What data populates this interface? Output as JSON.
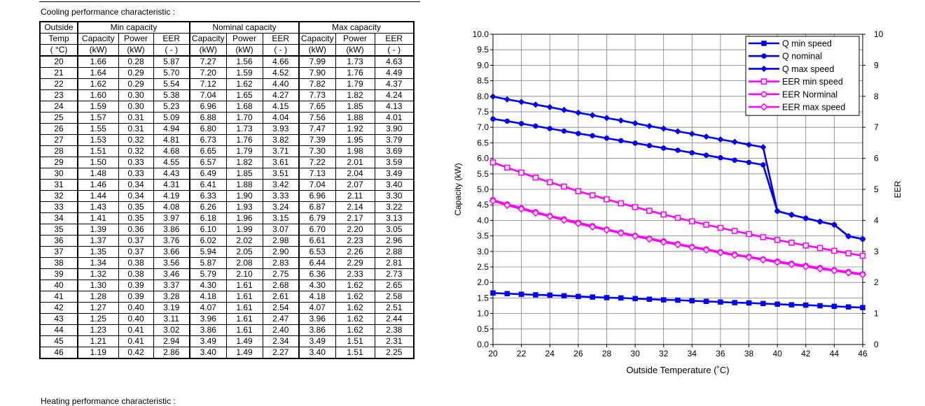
{
  "caption": "Cooling performance  characteristic :",
  "footer_caption": "Heating performance  characteristic :",
  "table": {
    "header_row1": [
      "Outside",
      "Min capacity",
      "Nominal capacity",
      "Max capacity"
    ],
    "header_row2": [
      "Temp",
      "Capacity",
      "Power",
      "EER",
      "Capacity",
      "Power",
      "EER",
      "Capacity",
      "Power",
      "EER"
    ],
    "header_row3": [
      "( °C)",
      "(kW)",
      "(kW)",
      "( - )",
      "(kW)",
      "(kW)",
      "( - )",
      "(kW)",
      "(kW)",
      "( - )"
    ],
    "rows": [
      [
        "20",
        "1.66",
        "0.28",
        "5.87",
        "7.27",
        "1.56",
        "4.66",
        "7.99",
        "1.73",
        "4.63"
      ],
      [
        "21",
        "1.64",
        "0.29",
        "5.70",
        "7.20",
        "1.59",
        "4.52",
        "7.90",
        "1.76",
        "4.49"
      ],
      [
        "22",
        "1.62",
        "0.29",
        "5.54",
        "7.12",
        "1.62",
        "4.40",
        "7.82",
        "1.79",
        "4.37"
      ],
      [
        "23",
        "1.60",
        "0.30",
        "5.38",
        "7.04",
        "1.65",
        "4.27",
        "7.73",
        "1.82",
        "4.24"
      ],
      [
        "24",
        "1.59",
        "0.30",
        "5.23",
        "6.96",
        "1.68",
        "4.15",
        "7.65",
        "1.85",
        "4.13"
      ],
      [
        "25",
        "1.57",
        "0.31",
        "5.09",
        "6.88",
        "1.70",
        "4.04",
        "7.56",
        "1.88",
        "4.01"
      ],
      [
        "26",
        "1.55",
        "0.31",
        "4.94",
        "6.80",
        "1.73",
        "3.93",
        "7.47",
        "1.92",
        "3.90"
      ],
      [
        "27",
        "1.53",
        "0.32",
        "4.81",
        "6.73",
        "1.76",
        "3.82",
        "7.39",
        "1.95",
        "3.79"
      ],
      [
        "28",
        "1.51",
        "0.32",
        "4.68",
        "6.65",
        "1.79",
        "3.71",
        "7.30",
        "1.98",
        "3.69"
      ],
      [
        "29",
        "1.50",
        "0.33",
        "4.55",
        "6.57",
        "1.82",
        "3.61",
        "7.22",
        "2.01",
        "3.59"
      ],
      [
        "30",
        "1.48",
        "0.33",
        "4.43",
        "6.49",
        "1.85",
        "3.51",
        "7.13",
        "2.04",
        "3.49"
      ],
      [
        "31",
        "1.46",
        "0.34",
        "4.31",
        "6.41",
        "1.88",
        "3.42",
        "7.04",
        "2.07",
        "3.40"
      ],
      [
        "32",
        "1.44",
        "0.34",
        "4.19",
        "6.33",
        "1.90",
        "3.33",
        "6.96",
        "2.11",
        "3.30"
      ],
      [
        "33",
        "1.43",
        "0.35",
        "4.08",
        "6.26",
        "1.93",
        "3.24",
        "6.87",
        "2.14",
        "3.22"
      ],
      [
        "34",
        "1.41",
        "0.35",
        "3.97",
        "6.18",
        "1.96",
        "3.15",
        "6.79",
        "2.17",
        "3.13"
      ],
      [
        "35",
        "1.39",
        "0.36",
        "3.86",
        "6.10",
        "1.99",
        "3.07",
        "6.70",
        "2.20",
        "3.05"
      ],
      [
        "36",
        "1.37",
        "0.37",
        "3.76",
        "6.02",
        "2.02",
        "2.98",
        "6.61",
        "2.23",
        "2.96"
      ],
      [
        "37",
        "1.35",
        "0.37",
        "3.66",
        "5.94",
        "2.05",
        "2.90",
        "6.53",
        "2.26",
        "2.88"
      ],
      [
        "38",
        "1.34",
        "0.38",
        "3.56",
        "5.87",
        "2.08",
        "2.83",
        "6.44",
        "2.29",
        "2.81"
      ],
      [
        "39",
        "1.32",
        "0.38",
        "3.46",
        "5.79",
        "2.10",
        "2.75",
        "6.36",
        "2.33",
        "2.73"
      ],
      [
        "40",
        "1.30",
        "0.39",
        "3.37",
        "4.30",
        "1.61",
        "2.68",
        "4.30",
        "1.62",
        "2.65"
      ],
      [
        "41",
        "1.28",
        "0.39",
        "3.28",
        "4.18",
        "1.61",
        "2.61",
        "4.18",
        "1.62",
        "2.58"
      ],
      [
        "42",
        "1.27",
        "0.40",
        "3.19",
        "4.07",
        "1.61",
        "2.54",
        "4.07",
        "1.62",
        "2.51"
      ],
      [
        "43",
        "1.25",
        "0.40",
        "3.11",
        "3.96",
        "1.61",
        "2.47",
        "3.96",
        "1.62",
        "2.44"
      ],
      [
        "44",
        "1.23",
        "0.41",
        "3.02",
        "3.86",
        "1.61",
        "2.40",
        "3.86",
        "1.62",
        "2.38"
      ],
      [
        "45",
        "1.21",
        "0.41",
        "2.94",
        "3.49",
        "1.49",
        "2.34",
        "3.49",
        "1.51",
        "2.31"
      ],
      [
        "46",
        "1.19",
        "0.42",
        "2.86",
        "3.40",
        "1.49",
        "2.27",
        "3.40",
        "1.51",
        "2.25"
      ]
    ]
  },
  "chart_data": {
    "type": "line",
    "title": "",
    "xlabel": "Outside Temperature (˚C)",
    "ylabel": "Capacity (kW)",
    "y2label": "EER",
    "xlim": [
      20,
      46
    ],
    "ylim": [
      0,
      10
    ],
    "y2lim": [
      0,
      10
    ],
    "xticks": [
      "20",
      "22",
      "24",
      "26",
      "28",
      "30",
      "32",
      "34",
      "36",
      "38",
      "40",
      "42",
      "44",
      "46"
    ],
    "yticks": [
      "0.0",
      "0.5",
      "1.0",
      "1.5",
      "2.0",
      "2.5",
      "3.0",
      "3.5",
      "4.0",
      "4.5",
      "5.0",
      "5.5",
      "6.0",
      "6.5",
      "7.0",
      "7.5",
      "8.0",
      "8.5",
      "9.0",
      "9.5",
      "10.0"
    ],
    "y2ticks": [
      "0",
      "1",
      "2",
      "3",
      "4",
      "5",
      "6",
      "7",
      "8",
      "9",
      "10"
    ],
    "grid": true,
    "legend_position": "top-right",
    "colors": {
      "capacity": "#0000ff",
      "eer": "#ff00ff",
      "grid": "#808080"
    },
    "x": [
      20,
      21,
      22,
      23,
      24,
      25,
      26,
      27,
      28,
      29,
      30,
      31,
      32,
      33,
      34,
      35,
      36,
      37,
      38,
      39,
      40,
      41,
      42,
      43,
      44,
      45,
      46
    ],
    "series": [
      {
        "name": "Q min speed",
        "axis": "left",
        "marker": "filled-square",
        "color": "#0000ff",
        "values": [
          1.66,
          1.64,
          1.62,
          1.6,
          1.59,
          1.57,
          1.55,
          1.53,
          1.51,
          1.5,
          1.48,
          1.46,
          1.44,
          1.43,
          1.41,
          1.39,
          1.37,
          1.35,
          1.34,
          1.32,
          1.3,
          1.28,
          1.27,
          1.25,
          1.23,
          1.21,
          1.19
        ]
      },
      {
        "name": "Q nominal",
        "axis": "left",
        "marker": "filled-circle",
        "color": "#0000ff",
        "values": [
          7.27,
          7.2,
          7.12,
          7.04,
          6.96,
          6.88,
          6.8,
          6.73,
          6.65,
          6.57,
          6.49,
          6.41,
          6.33,
          6.26,
          6.18,
          6.1,
          6.02,
          5.94,
          5.87,
          5.79,
          4.3,
          4.18,
          4.07,
          3.96,
          3.86,
          3.49,
          3.4
        ]
      },
      {
        "name": "Q max speed",
        "axis": "left",
        "marker": "filled-diamond",
        "color": "#0000ff",
        "values": [
          7.99,
          7.9,
          7.82,
          7.73,
          7.65,
          7.56,
          7.47,
          7.39,
          7.3,
          7.22,
          7.13,
          7.04,
          6.96,
          6.87,
          6.79,
          6.7,
          6.61,
          6.53,
          6.44,
          6.36,
          4.3,
          4.18,
          4.07,
          3.96,
          3.86,
          3.49,
          3.4
        ]
      },
      {
        "name": "EER min speed",
        "axis": "right",
        "marker": "open-square",
        "color": "#ff00ff",
        "values": [
          5.87,
          5.7,
          5.54,
          5.38,
          5.23,
          5.09,
          4.94,
          4.81,
          4.68,
          4.55,
          4.43,
          4.31,
          4.19,
          4.08,
          3.97,
          3.86,
          3.76,
          3.66,
          3.56,
          3.46,
          3.37,
          3.28,
          3.19,
          3.11,
          3.02,
          2.94,
          2.86
        ]
      },
      {
        "name": "EER Norminal",
        "axis": "right",
        "marker": "open-circle",
        "color": "#ff00ff",
        "values": [
          4.66,
          4.52,
          4.4,
          4.27,
          4.15,
          4.04,
          3.93,
          3.82,
          3.71,
          3.61,
          3.51,
          3.42,
          3.33,
          3.24,
          3.15,
          3.07,
          2.98,
          2.9,
          2.83,
          2.75,
          2.68,
          2.61,
          2.54,
          2.47,
          2.4,
          2.34,
          2.27
        ]
      },
      {
        "name": "EER max speed",
        "axis": "right",
        "marker": "open-diamond",
        "color": "#ff00ff",
        "values": [
          4.63,
          4.49,
          4.37,
          4.24,
          4.13,
          4.01,
          3.9,
          3.79,
          3.69,
          3.59,
          3.49,
          3.4,
          3.3,
          3.22,
          3.13,
          3.05,
          2.96,
          2.88,
          2.81,
          2.73,
          2.65,
          2.58,
          2.51,
          2.44,
          2.38,
          2.31,
          2.25
        ]
      }
    ]
  }
}
